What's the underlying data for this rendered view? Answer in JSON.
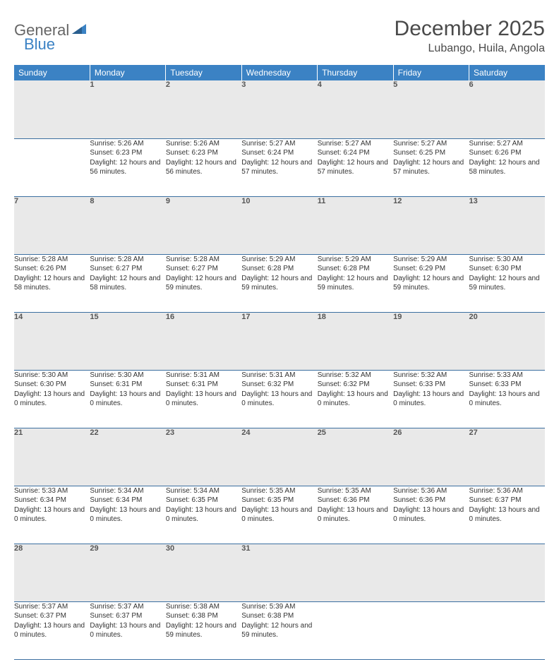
{
  "logo": {
    "text1": "General",
    "text2": "Blue"
  },
  "title": "December 2025",
  "location": "Lubango, Huila, Angola",
  "colors": {
    "header_bg": "#3b82c4",
    "header_text": "#ffffff",
    "row_divider": "#3b6fa0",
    "daynum_bg": "#e9e9e9",
    "body_text": "#333333",
    "logo_gray": "#666666",
    "logo_blue": "#3b82c4"
  },
  "typography": {
    "title_fontsize": 30,
    "location_fontsize": 16,
    "header_fontsize": 12,
    "daynum_fontsize": 11,
    "cell_fontsize": 10
  },
  "weekdays": [
    "Sunday",
    "Monday",
    "Tuesday",
    "Wednesday",
    "Thursday",
    "Friday",
    "Saturday"
  ],
  "weeks": [
    [
      null,
      {
        "n": "1",
        "sr": "5:26 AM",
        "ss": "6:23 PM",
        "dl": "12 hours and 56 minutes."
      },
      {
        "n": "2",
        "sr": "5:26 AM",
        "ss": "6:23 PM",
        "dl": "12 hours and 56 minutes."
      },
      {
        "n": "3",
        "sr": "5:27 AM",
        "ss": "6:24 PM",
        "dl": "12 hours and 57 minutes."
      },
      {
        "n": "4",
        "sr": "5:27 AM",
        "ss": "6:24 PM",
        "dl": "12 hours and 57 minutes."
      },
      {
        "n": "5",
        "sr": "5:27 AM",
        "ss": "6:25 PM",
        "dl": "12 hours and 57 minutes."
      },
      {
        "n": "6",
        "sr": "5:27 AM",
        "ss": "6:26 PM",
        "dl": "12 hours and 58 minutes."
      }
    ],
    [
      {
        "n": "7",
        "sr": "5:28 AM",
        "ss": "6:26 PM",
        "dl": "12 hours and 58 minutes."
      },
      {
        "n": "8",
        "sr": "5:28 AM",
        "ss": "6:27 PM",
        "dl": "12 hours and 58 minutes."
      },
      {
        "n": "9",
        "sr": "5:28 AM",
        "ss": "6:27 PM",
        "dl": "12 hours and 59 minutes."
      },
      {
        "n": "10",
        "sr": "5:29 AM",
        "ss": "6:28 PM",
        "dl": "12 hours and 59 minutes."
      },
      {
        "n": "11",
        "sr": "5:29 AM",
        "ss": "6:28 PM",
        "dl": "12 hours and 59 minutes."
      },
      {
        "n": "12",
        "sr": "5:29 AM",
        "ss": "6:29 PM",
        "dl": "12 hours and 59 minutes."
      },
      {
        "n": "13",
        "sr": "5:30 AM",
        "ss": "6:30 PM",
        "dl": "12 hours and 59 minutes."
      }
    ],
    [
      {
        "n": "14",
        "sr": "5:30 AM",
        "ss": "6:30 PM",
        "dl": "13 hours and 0 minutes."
      },
      {
        "n": "15",
        "sr": "5:30 AM",
        "ss": "6:31 PM",
        "dl": "13 hours and 0 minutes."
      },
      {
        "n": "16",
        "sr": "5:31 AM",
        "ss": "6:31 PM",
        "dl": "13 hours and 0 minutes."
      },
      {
        "n": "17",
        "sr": "5:31 AM",
        "ss": "6:32 PM",
        "dl": "13 hours and 0 minutes."
      },
      {
        "n": "18",
        "sr": "5:32 AM",
        "ss": "6:32 PM",
        "dl": "13 hours and 0 minutes."
      },
      {
        "n": "19",
        "sr": "5:32 AM",
        "ss": "6:33 PM",
        "dl": "13 hours and 0 minutes."
      },
      {
        "n": "20",
        "sr": "5:33 AM",
        "ss": "6:33 PM",
        "dl": "13 hours and 0 minutes."
      }
    ],
    [
      {
        "n": "21",
        "sr": "5:33 AM",
        "ss": "6:34 PM",
        "dl": "13 hours and 0 minutes."
      },
      {
        "n": "22",
        "sr": "5:34 AM",
        "ss": "6:34 PM",
        "dl": "13 hours and 0 minutes."
      },
      {
        "n": "23",
        "sr": "5:34 AM",
        "ss": "6:35 PM",
        "dl": "13 hours and 0 minutes."
      },
      {
        "n": "24",
        "sr": "5:35 AM",
        "ss": "6:35 PM",
        "dl": "13 hours and 0 minutes."
      },
      {
        "n": "25",
        "sr": "5:35 AM",
        "ss": "6:36 PM",
        "dl": "13 hours and 0 minutes."
      },
      {
        "n": "26",
        "sr": "5:36 AM",
        "ss": "6:36 PM",
        "dl": "13 hours and 0 minutes."
      },
      {
        "n": "27",
        "sr": "5:36 AM",
        "ss": "6:37 PM",
        "dl": "13 hours and 0 minutes."
      }
    ],
    [
      {
        "n": "28",
        "sr": "5:37 AM",
        "ss": "6:37 PM",
        "dl": "13 hours and 0 minutes."
      },
      {
        "n": "29",
        "sr": "5:37 AM",
        "ss": "6:37 PM",
        "dl": "13 hours and 0 minutes."
      },
      {
        "n": "30",
        "sr": "5:38 AM",
        "ss": "6:38 PM",
        "dl": "12 hours and 59 minutes."
      },
      {
        "n": "31",
        "sr": "5:39 AM",
        "ss": "6:38 PM",
        "dl": "12 hours and 59 minutes."
      },
      null,
      null,
      null
    ]
  ],
  "labels": {
    "sunrise": "Sunrise:",
    "sunset": "Sunset:",
    "daylight": "Daylight:"
  }
}
